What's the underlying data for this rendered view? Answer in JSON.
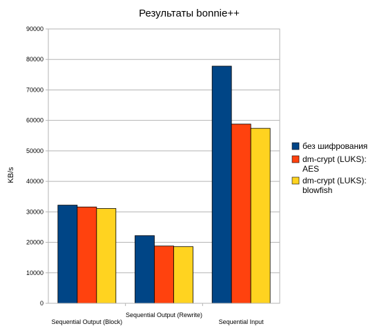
{
  "chart_data": {
    "type": "bar",
    "title": "Результаты bonnie++",
    "xlabel": "",
    "ylabel": "KB/s",
    "ylim": [
      0,
      90000
    ],
    "yticks": [
      0,
      10000,
      20000,
      30000,
      40000,
      50000,
      60000,
      70000,
      80000,
      90000
    ],
    "grid": true,
    "legend_position": "right",
    "categories": [
      "Sequential Output (Block)",
      "Sequential Output (Rewrite)",
      "Sequential Input"
    ],
    "series": [
      {
        "name": "без шифрования",
        "name_lines": [
          "без шифрования"
        ],
        "color": "#004586",
        "values": [
          32200,
          22200,
          77800
        ]
      },
      {
        "name": "dm-crypt (LUKS): AES",
        "name_lines": [
          "dm-crypt (LUKS):",
          "AES"
        ],
        "color": "#ff420e",
        "values": [
          31600,
          18800,
          58800
        ]
      },
      {
        "name": "dm-crypt (LUKS): blowfish",
        "name_lines": [
          "dm-crypt (LUKS):",
          "blowfish"
        ],
        "color": "#ffd320",
        "values": [
          31100,
          18600,
          57400
        ]
      }
    ]
  }
}
